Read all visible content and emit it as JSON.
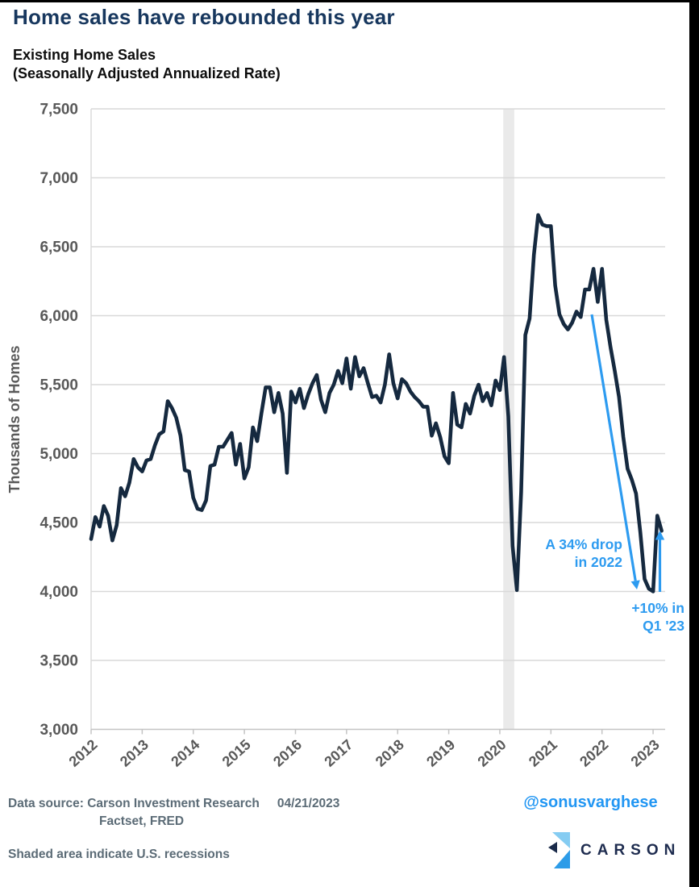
{
  "page": {
    "title": "Home sales have rebounded this year",
    "subtitle_line1": "Existing Home Sales",
    "subtitle_line2": "(Seasonally Adjusted Annualized Rate)"
  },
  "chart_data": {
    "type": "line",
    "title": "Existing Home Sales (Seasonally Adjusted Annualized Rate)",
    "ylabel": "Thousands of Homes",
    "xlabel": "",
    "ylim": [
      3000,
      7500
    ],
    "grid": true,
    "legend_position": "none",
    "ytick_values": [
      7500,
      7000,
      6500,
      6000,
      5500,
      5000,
      4500,
      4000,
      3500,
      3000
    ],
    "ytick_labels": [
      "7,500",
      "7,000",
      "6,500",
      "6,000",
      "5,500",
      "5,000",
      "4,500",
      "4,000",
      "3,500",
      "3,000"
    ],
    "xtick_labels": [
      "2012",
      "2013",
      "2014",
      "2015",
      "2016",
      "2017",
      "2018",
      "2019",
      "2020",
      "2021",
      "2022",
      "2023"
    ],
    "x_start": "2012-01",
    "x_end": "2023-03",
    "line_color": "#15293f",
    "series": [
      {
        "name": "Existing Home Sales (thousands, SAAR)",
        "monthly_values": [
          4380,
          4540,
          4470,
          4620,
          4550,
          4370,
          4480,
          4750,
          4690,
          4790,
          4960,
          4900,
          4870,
          4950,
          4960,
          5060,
          5140,
          5160,
          5380,
          5330,
          5260,
          5130,
          4880,
          4870,
          4680,
          4600,
          4590,
          4660,
          4910,
          4920,
          5050,
          5050,
          5100,
          5150,
          4920,
          5070,
          4820,
          4900,
          5190,
          5090,
          5290,
          5480,
          5480,
          5300,
          5440,
          5290,
          4860,
          5450,
          5370,
          5470,
          5330,
          5430,
          5510,
          5570,
          5390,
          5300,
          5440,
          5500,
          5600,
          5510,
          5690,
          5470,
          5700,
          5560,
          5620,
          5510,
          5410,
          5420,
          5370,
          5500,
          5720,
          5510,
          5400,
          5540,
          5510,
          5450,
          5410,
          5380,
          5340,
          5340,
          5130,
          5220,
          5120,
          4980,
          4930,
          5440,
          5210,
          5190,
          5360,
          5290,
          5420,
          5500,
          5380,
          5440,
          5350,
          5530,
          5460,
          5700,
          5270,
          4330,
          4010,
          4720,
          5860,
          5980,
          6440,
          6730,
          6660,
          6650,
          6650,
          6220,
          6010,
          5940,
          5900,
          5950,
          6030,
          5990,
          6190,
          6190,
          6340,
          6100,
          6340,
          5970,
          5770,
          5600,
          5410,
          5120,
          4890,
          4810,
          4710,
          4430,
          4090,
          4020,
          4000,
          4550,
          4440
        ]
      }
    ],
    "recession_band": {
      "from": "2020-02",
      "to": "2020-04",
      "color": "#eaeaea"
    },
    "annotations": [
      {
        "line1": "A 34% drop",
        "line2": "in 2022",
        "color": "#2d9bf0"
      },
      {
        "line1": "+10% in",
        "line2": "Q1 '23",
        "color": "#2d9bf0"
      }
    ]
  },
  "footer": {
    "source_prefix": "Data source:",
    "source_line1": "Data source: Carson Investment Research",
    "source_date": "04/21/2023",
    "source_line2": "Factset, FRED",
    "note": "Shaded area indicate U.S. recessions",
    "handle": "@sonusvarghese",
    "brand": "CARSON"
  },
  "colors": {
    "title": "#17375e",
    "line": "#15293f",
    "accent_blue": "#2d9bf0",
    "axis_text": "#595959",
    "gridline": "#d9d9d9",
    "recession_band": "#eaeaea",
    "footer_text": "#5b6b76",
    "brand_navy": "#1e2c4f",
    "brand_light_blue": "#85ccf2",
    "brand_mid_blue": "#2d9ce8"
  }
}
